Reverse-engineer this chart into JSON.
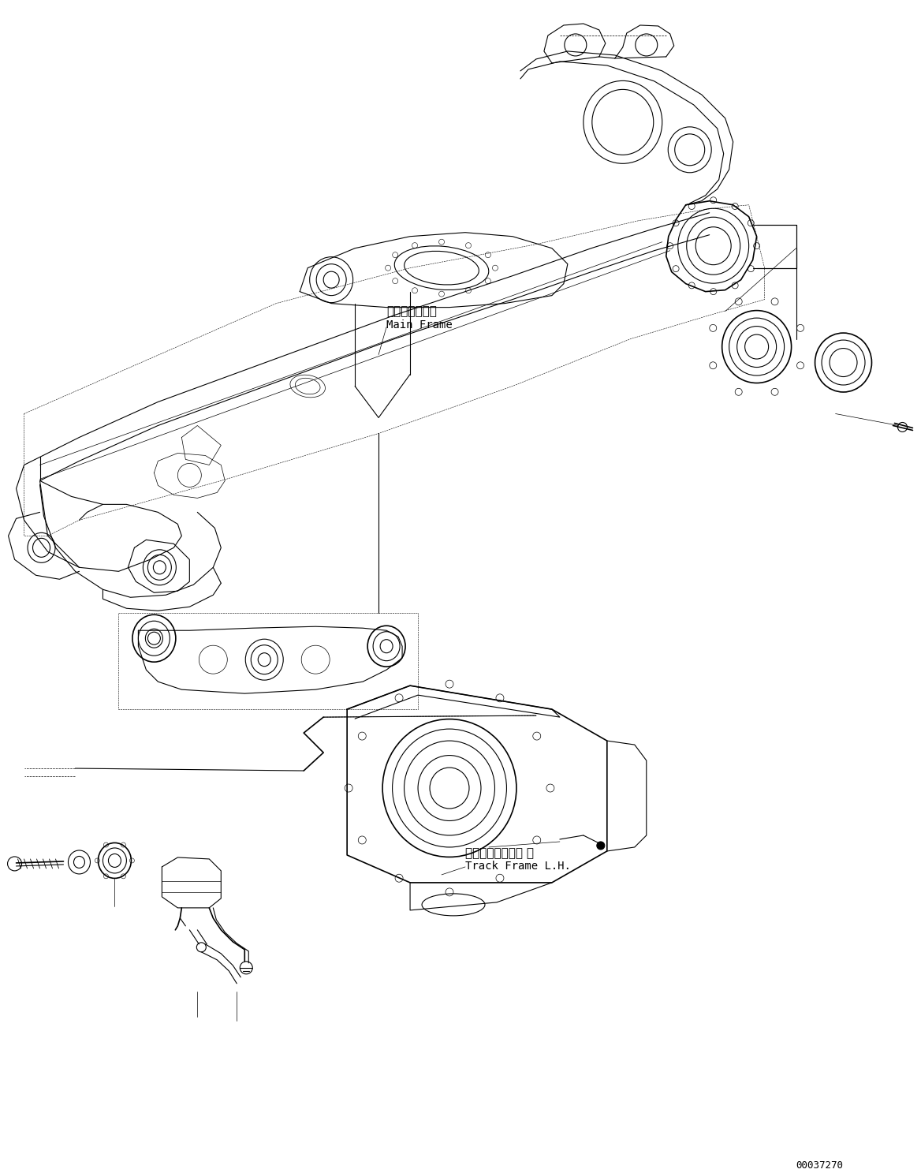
{
  "doc_number": "00037270",
  "label_main_frame_jp": "メインフレーム",
  "label_main_frame_en": "Main Frame",
  "label_track_frame_jp": "トラックフレーム 左",
  "label_track_frame_en": "Track Frame L.H.",
  "bg_color": "#ffffff",
  "line_color": "#000000",
  "text_color": "#000000",
  "figsize": [
    11.68,
    14.87
  ],
  "dpi": 100
}
